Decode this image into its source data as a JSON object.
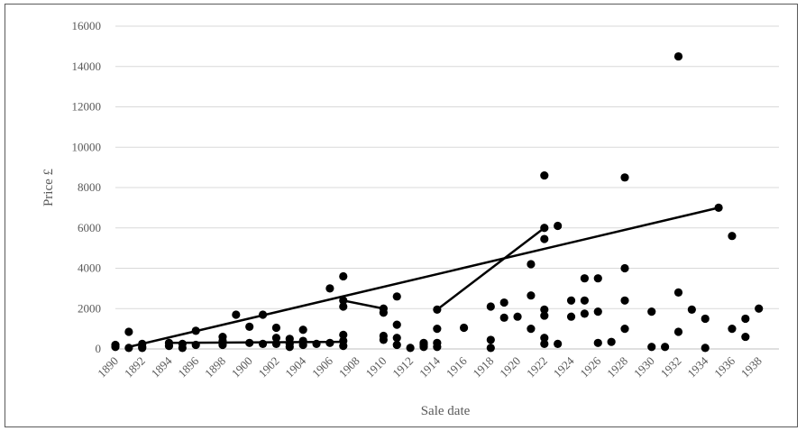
{
  "chart_data": {
    "type": "scatter",
    "title": "",
    "xlabel": "Sale date",
    "ylabel": "Price £",
    "xlim": [
      1890,
      1939.5
    ],
    "ylim": [
      0,
      16000
    ],
    "y_ticks": [
      0,
      2000,
      4000,
      6000,
      8000,
      10000,
      12000,
      14000,
      16000
    ],
    "x_tick_labels": [
      "1890",
      "1892",
      "1894",
      "1896",
      "1898",
      "1900",
      "1902",
      "1904",
      "1906",
      "1908",
      "1910",
      "1912",
      "1914",
      "1916",
      "1918",
      "1920",
      "1922",
      "1924",
      "1926",
      "1928",
      "1930",
      "1932",
      "1934",
      "1936",
      "1938"
    ],
    "grid": "horizontal",
    "colors": {
      "marker": "#000000",
      "line": "#000000",
      "grid": "#d9d9d9",
      "axis": "#bfbfbf",
      "text": "#595959"
    },
    "series": [
      {
        "type": "scatter",
        "points": [
          [
            1890,
            200
          ],
          [
            1890,
            100
          ],
          [
            1891,
            850
          ],
          [
            1891,
            50
          ],
          [
            1892,
            250
          ],
          [
            1892,
            100
          ],
          [
            1892,
            50
          ],
          [
            1894,
            300
          ],
          [
            1894,
            150
          ],
          [
            1895,
            50
          ],
          [
            1895,
            250
          ],
          [
            1896,
            900
          ],
          [
            1896,
            200
          ],
          [
            1898,
            600
          ],
          [
            1898,
            400
          ],
          [
            1898,
            200
          ],
          [
            1899,
            1700
          ],
          [
            1900,
            1100
          ],
          [
            1900,
            300
          ],
          [
            1901,
            1700
          ],
          [
            1901,
            250
          ],
          [
            1902,
            1050
          ],
          [
            1902,
            550
          ],
          [
            1902,
            250
          ],
          [
            1903,
            500
          ],
          [
            1903,
            250
          ],
          [
            1903,
            100
          ],
          [
            1904,
            950
          ],
          [
            1904,
            400
          ],
          [
            1904,
            200
          ],
          [
            1905,
            250
          ],
          [
            1906,
            300
          ],
          [
            1906,
            3000
          ],
          [
            1907,
            3600
          ],
          [
            1907,
            2100
          ],
          [
            1907,
            2400
          ],
          [
            1907,
            700
          ],
          [
            1907,
            400
          ],
          [
            1907,
            150
          ],
          [
            1910,
            2000
          ],
          [
            1910,
            1800
          ],
          [
            1910,
            650
          ],
          [
            1910,
            450
          ],
          [
            1911,
            2600
          ],
          [
            1911,
            1200
          ],
          [
            1911,
            550
          ],
          [
            1911,
            200
          ],
          [
            1912,
            50
          ],
          [
            1913,
            300
          ],
          [
            1913,
            100
          ],
          [
            1913,
            200
          ],
          [
            1914,
            1950
          ],
          [
            1914,
            1000
          ],
          [
            1914,
            300
          ],
          [
            1914,
            100
          ],
          [
            1916,
            1050
          ],
          [
            1918,
            2100
          ],
          [
            1918,
            450
          ],
          [
            1918,
            50
          ],
          [
            1919,
            2300
          ],
          [
            1919,
            1550
          ],
          [
            1920,
            1600
          ],
          [
            1921,
            2650
          ],
          [
            1921,
            4200
          ],
          [
            1921,
            1000
          ],
          [
            1922,
            8600
          ],
          [
            1922,
            6000
          ],
          [
            1922,
            5450
          ],
          [
            1922,
            1950
          ],
          [
            1922,
            1650
          ],
          [
            1922,
            550
          ],
          [
            1922,
            250
          ],
          [
            1923,
            6100
          ],
          [
            1923,
            250
          ],
          [
            1924,
            2400
          ],
          [
            1924,
            1600
          ],
          [
            1925,
            3500
          ],
          [
            1925,
            2400
          ],
          [
            1925,
            1750
          ],
          [
            1926,
            3500
          ],
          [
            1926,
            1850
          ],
          [
            1926,
            300
          ],
          [
            1927,
            350
          ],
          [
            1928,
            8500
          ],
          [
            1928,
            4000
          ],
          [
            1928,
            2400
          ],
          [
            1928,
            1000
          ],
          [
            1930,
            1850
          ],
          [
            1930,
            100
          ],
          [
            1931,
            100
          ],
          [
            1932,
            14500
          ],
          [
            1932,
            2800
          ],
          [
            1932,
            850
          ],
          [
            1933,
            1950
          ],
          [
            1934,
            1500
          ],
          [
            1934,
            50
          ],
          [
            1935,
            7000
          ],
          [
            1936,
            5600
          ],
          [
            1936,
            1000
          ],
          [
            1937,
            1500
          ],
          [
            1937,
            600
          ],
          [
            1938,
            2000
          ]
        ]
      },
      {
        "type": "line",
        "points": [
          [
            1891,
            100
          ],
          [
            1935,
            7000
          ]
        ]
      },
      {
        "type": "line",
        "points": [
          [
            1894,
            300
          ],
          [
            1907,
            350
          ]
        ]
      },
      {
        "type": "line",
        "points": [
          [
            1907,
            2400
          ],
          [
            1910,
            2000
          ]
        ]
      },
      {
        "type": "line",
        "points": [
          [
            1914,
            1950
          ],
          [
            1922,
            6000
          ]
        ]
      }
    ]
  }
}
